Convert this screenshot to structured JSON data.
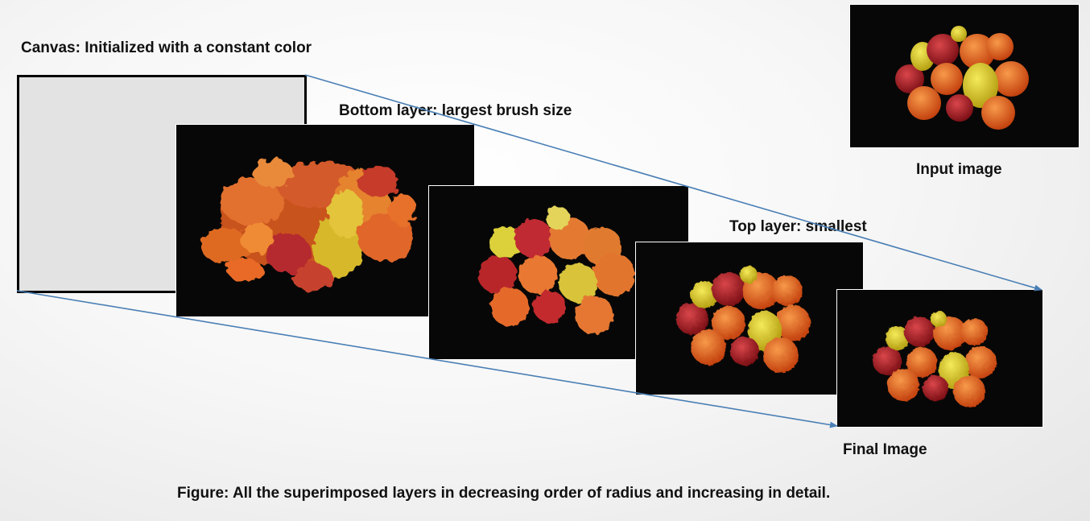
{
  "labels": {
    "canvas": "Canvas: Initialized with a constant color",
    "bottom_layer": "Bottom layer: largest brush size",
    "top_layer": "Top layer: smallest",
    "input_image": "Input image",
    "final_image": "Final Image",
    "caption": "Figure: All the superimposed layers in decreasing order of radius and increasing in detail."
  },
  "colors": {
    "arrow": "#4a7fb5",
    "panel_background": "#070707",
    "canvas_fill": "#e3e3e3"
  }
}
